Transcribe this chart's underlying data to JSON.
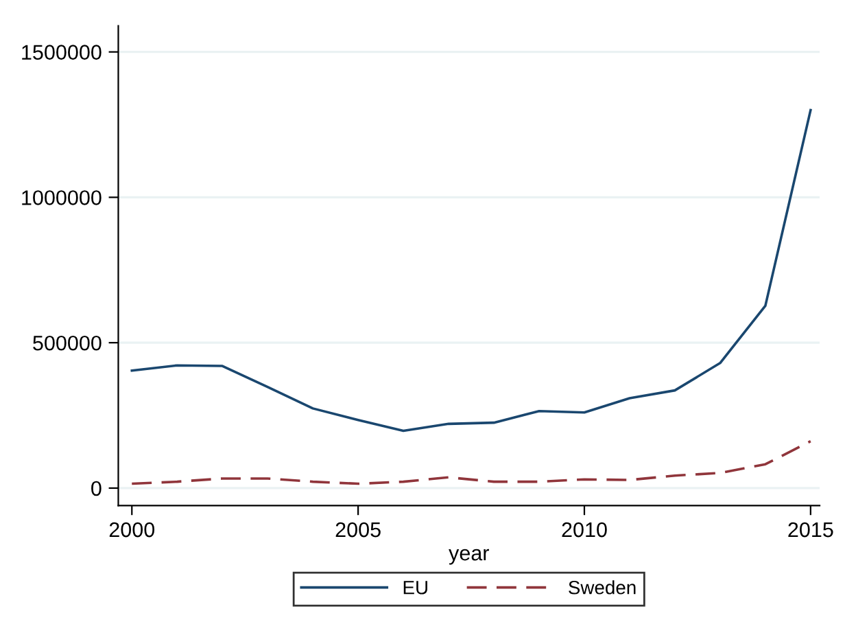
{
  "chart_data": {
    "type": "line",
    "xlabel": "year",
    "x": [
      2000,
      2001,
      2002,
      2003,
      2004,
      2005,
      2006,
      2007,
      2008,
      2009,
      2010,
      2011,
      2012,
      2013,
      2014,
      2015
    ],
    "series": [
      {
        "name": "EU",
        "color": "#1a476f",
        "line_style": "solid",
        "values": [
          404000,
          422000,
          420000,
          348000,
          274000,
          234000,
          197000,
          221000,
          225000,
          265000,
          260000,
          309000,
          336000,
          430000,
          627000,
          1300000
        ]
      },
      {
        "name": "Sweden",
        "color": "#90353b",
        "line_style": "dashed",
        "values": [
          15000,
          22000,
          33000,
          33000,
          22000,
          15000,
          22000,
          37000,
          22000,
          22000,
          30000,
          28000,
          43000,
          52000,
          82000,
          161000
        ]
      }
    ],
    "xlim": [
      1999.7,
      2015.2
    ],
    "xticks": [
      2000,
      2005,
      2010,
      2015
    ],
    "ylim": [
      0,
      1500000
    ],
    "yticks": [
      0,
      500000,
      1000000,
      1500000
    ],
    "grid": "y",
    "legend": "bottom"
  }
}
